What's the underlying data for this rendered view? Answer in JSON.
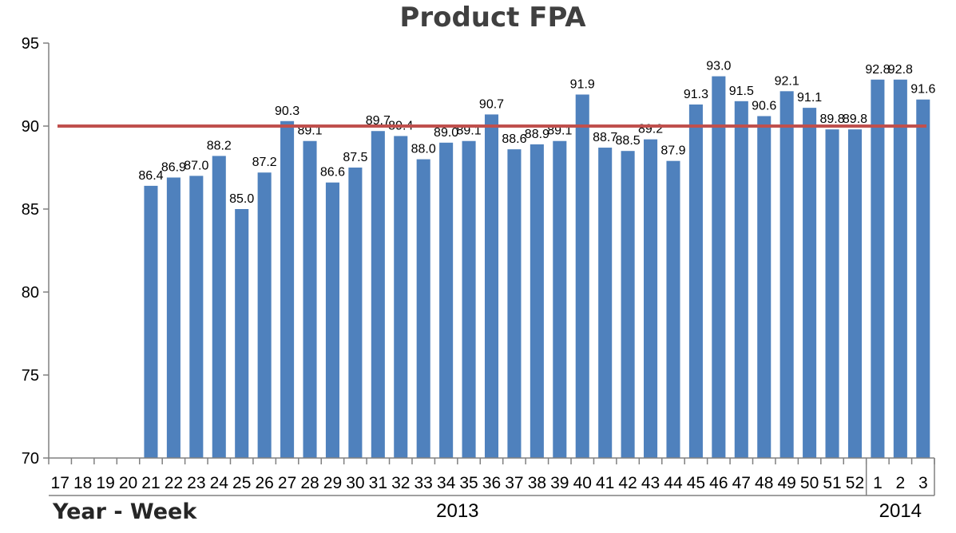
{
  "chart_data": {
    "type": "bar",
    "title": "Product FPA",
    "xlabel": "Year - Week",
    "ylabel": "",
    "ylim": [
      70,
      95
    ],
    "yticks": [
      "70",
      "75",
      "80",
      "85",
      "90",
      "95"
    ],
    "categories": [
      "17",
      "18",
      "19",
      "20",
      "21",
      "22",
      "23",
      "24",
      "25",
      "26",
      "27",
      "28",
      "29",
      "30",
      "31",
      "32",
      "33",
      "34",
      "35",
      "36",
      "37",
      "38",
      "39",
      "40",
      "41",
      "42",
      "43",
      "44",
      "45",
      "46",
      "47",
      "48",
      "49",
      "50",
      "51",
      "52",
      "1",
      "2",
      "3"
    ],
    "values": [
      null,
      null,
      null,
      null,
      86.4,
      86.9,
      87.0,
      88.2,
      85.0,
      87.2,
      90.3,
      89.1,
      86.6,
      87.5,
      89.7,
      89.4,
      88.0,
      89.0,
      89.1,
      90.7,
      88.6,
      88.9,
      89.1,
      91.9,
      88.7,
      88.5,
      89.2,
      87.9,
      91.3,
      93.0,
      91.5,
      90.6,
      92.1,
      91.1,
      89.8,
      89.8,
      92.8,
      92.8,
      91.6
    ],
    "data_labels": [
      "",
      "",
      "",
      "",
      "86.4",
      "86.9",
      "87.0",
      "88.2",
      "85.0",
      "87.2",
      "90.3",
      "89.1",
      "86.6",
      "87.5",
      "89.7",
      "89.4",
      "88.0",
      "89.0",
      "89.1",
      "90.7",
      "88.6",
      "88.9",
      "89.1",
      "91.9",
      "88.7",
      "88.5",
      "89.2",
      "87.9",
      "91.3",
      "93.0",
      "91.5",
      "90.6",
      "92.1",
      "91.1",
      "89.8",
      "89.8",
      "92.8",
      "92.8",
      "91.6"
    ],
    "target_line": 90,
    "year_groups": [
      {
        "label": "2013",
        "from": "17",
        "to": "52"
      },
      {
        "label": "2014",
        "from": "1",
        "to": "3"
      }
    ],
    "bar_color": "#4f81bd",
    "target_color": "#c0504d",
    "grid": false,
    "legend": "none"
  }
}
